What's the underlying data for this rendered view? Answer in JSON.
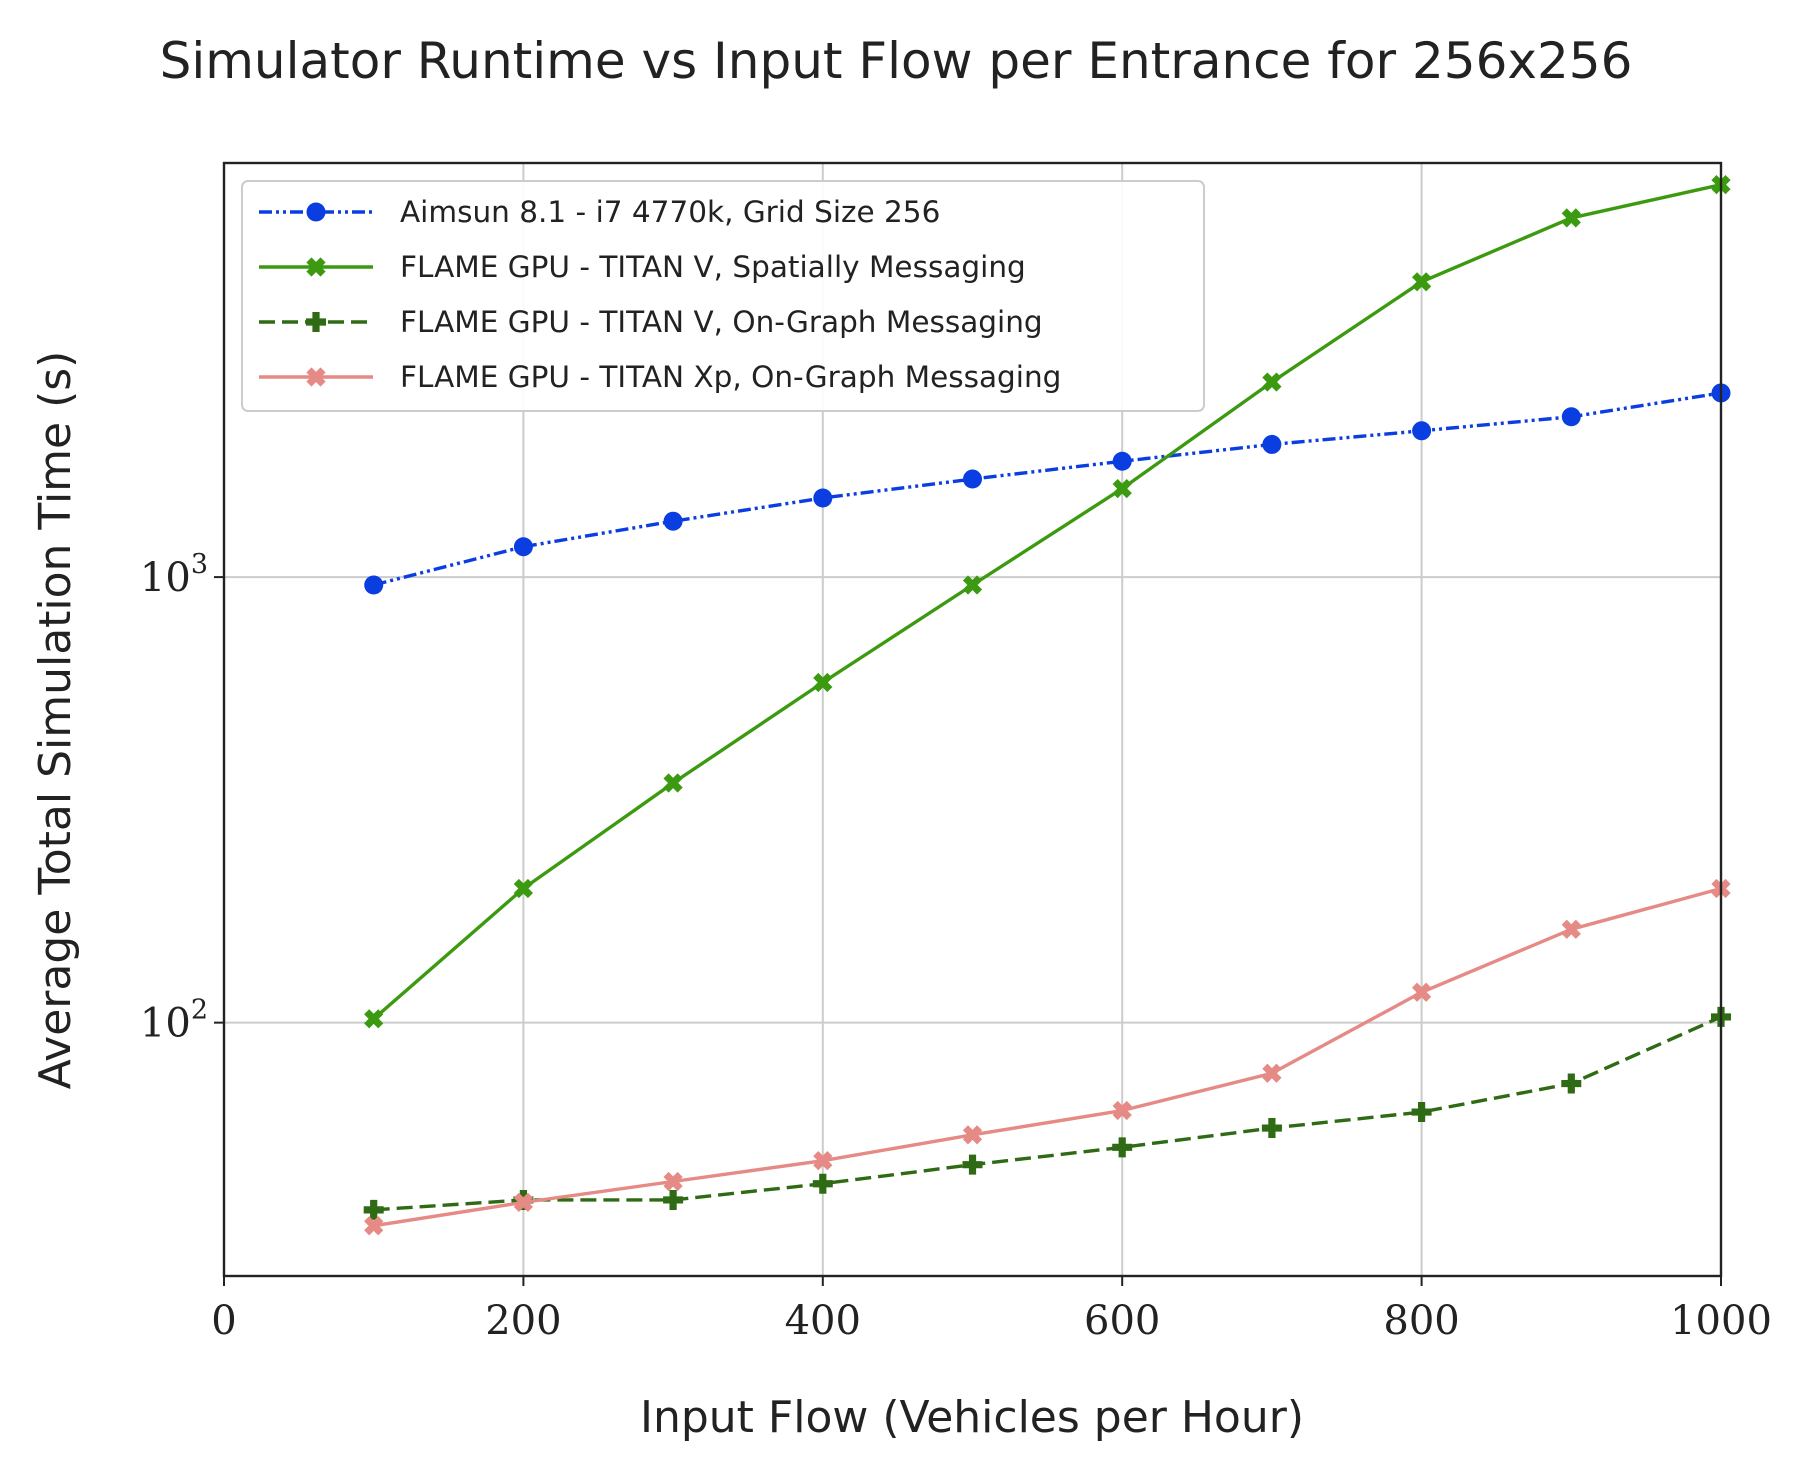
{
  "chart_data": {
    "type": "line",
    "title": "Simulator Runtime vs Input Flow per Entrance for 256x256",
    "xlabel": "Input Flow (Vehicles per Hour)",
    "ylabel": "Average Total Simulation Time (s)",
    "xlim": [
      0,
      1000
    ],
    "ylim": [
      27,
      8500
    ],
    "yscale": "log",
    "grid": true,
    "legend": "top-left",
    "x_ticks": [
      0,
      200,
      400,
      600,
      800,
      1000
    ],
    "x_tick_labels": [
      "0",
      "200",
      "400",
      "600",
      "800",
      "1000"
    ],
    "y_ticks": [
      100,
      1000
    ],
    "y_tick_labels": [
      {
        "base": "10",
        "exp": "2"
      },
      {
        "base": "10",
        "exp": "3"
      }
    ],
    "x": [
      100,
      200,
      300,
      400,
      500,
      600,
      700,
      800,
      900,
      1000
    ],
    "series": [
      {
        "name": "Aimsun 8.1 - i7 4770k, Grid Size 256",
        "values": [
          960,
          1170,
          1335,
          1505,
          1660,
          1820,
          1985,
          2130,
          2290,
          2590
        ],
        "color": "#0b3ee0",
        "dash": "dash-dot-dot",
        "marker": "circle"
      },
      {
        "name": "FLAME GPU - TITAN V, Spatially Messaging",
        "values": [
          102,
          200,
          345,
          580,
          960,
          1580,
          2740,
          4600,
          6400,
          7600
        ],
        "color": "#3c9a10",
        "dash": "solid",
        "marker": "x-filled"
      },
      {
        "name": "FLAME GPU - TITAN V, On-Graph Messaging",
        "values": [
          38,
          40,
          40,
          43.5,
          48,
          52.5,
          58,
          63,
          73,
          103
        ],
        "color": "#2f6a14",
        "dash": "dashed",
        "marker": "plus-filled"
      },
      {
        "name": "FLAME GPU - TITAN Xp, On-Graph Messaging",
        "values": [
          35,
          39.5,
          44,
          49,
          56,
          63.5,
          77,
          117,
          162,
          200
        ],
        "color": "#e58a85",
        "dash": "solid",
        "marker": "x-filled"
      }
    ]
  }
}
